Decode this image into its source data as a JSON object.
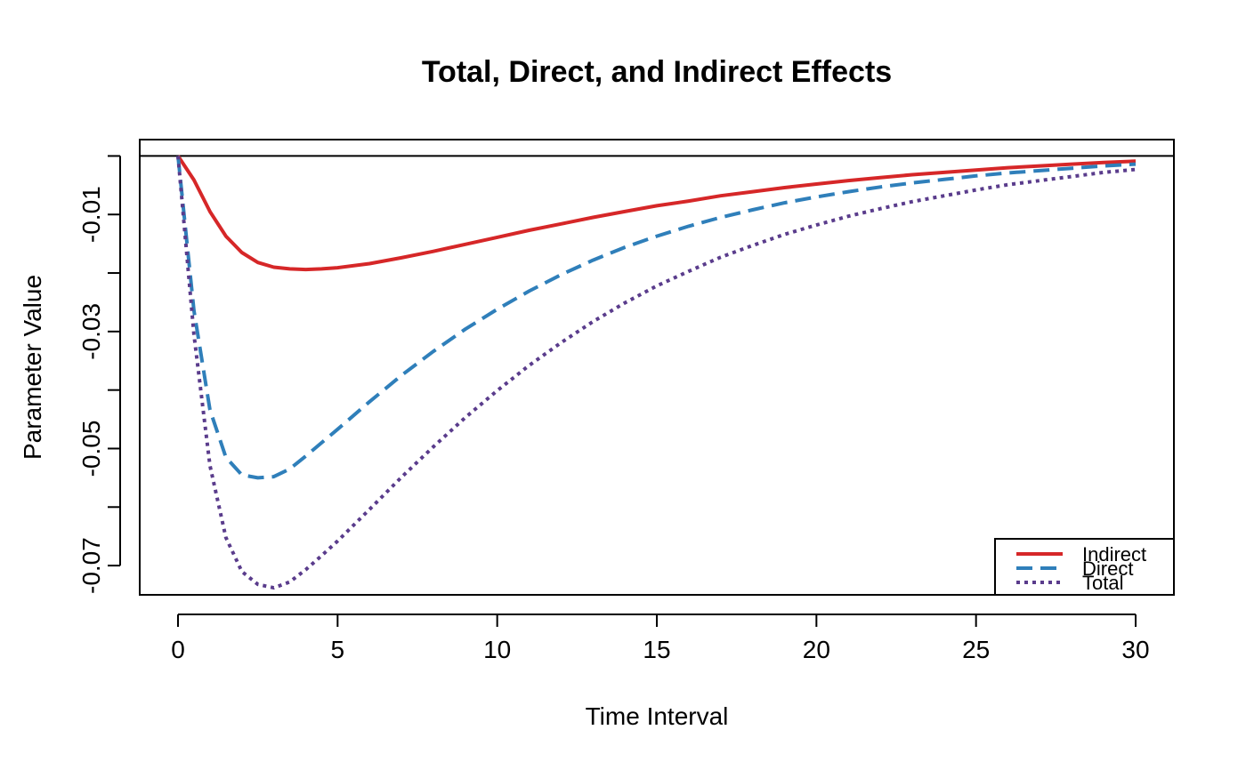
{
  "chart_data": {
    "type": "line",
    "title": "Total, Direct, and Indirect Effects",
    "xlabel": "Time Interval",
    "ylabel": "Parameter Value",
    "xlim": [
      0,
      30
    ],
    "ylim": [
      -0.075,
      0.0028
    ],
    "x_ticks": [
      0,
      5,
      10,
      15,
      20,
      25,
      30
    ],
    "x_tick_labels": [
      "0",
      "5",
      "10",
      "15",
      "20",
      "25",
      "30"
    ],
    "y_ticks": [
      -0.07,
      -0.06,
      -0.05,
      -0.04,
      -0.03,
      -0.02,
      -0.01,
      0
    ],
    "y_tick_labels": [
      {
        "value": -0.07,
        "label": "-0.07"
      },
      {
        "value": -0.05,
        "label": "-0.05"
      },
      {
        "value": -0.03,
        "label": "-0.03"
      },
      {
        "value": -0.01,
        "label": "-0.01"
      }
    ],
    "reference_line": 0,
    "grid": false,
    "legend_position": "bottom-right",
    "x": [
      0,
      0.5,
      1,
      1.5,
      2,
      2.5,
      3,
      3.5,
      4,
      4.5,
      5,
      6,
      7,
      8,
      9,
      10,
      11,
      12,
      13,
      14,
      15,
      16,
      17,
      18,
      19,
      20,
      21,
      22,
      23,
      24,
      25,
      26,
      27,
      28,
      29,
      30
    ],
    "series": [
      {
        "name": "Indirect",
        "color": "#d62728",
        "dash": "solid",
        "values": [
          0,
          -0.0041,
          -0.0095,
          -0.0137,
          -0.0165,
          -0.0182,
          -0.019,
          -0.0193,
          -0.0194,
          -0.0193,
          -0.0191,
          -0.0184,
          -0.0174,
          -0.0163,
          -0.0151,
          -0.0139,
          -0.0127,
          -0.0116,
          -0.0105,
          -0.0095,
          -0.0085,
          -0.0077,
          -0.0068,
          -0.0061,
          -0.0054,
          -0.0048,
          -0.0042,
          -0.0037,
          -0.0032,
          -0.0028,
          -0.0024,
          -0.002,
          -0.0017,
          -0.0014,
          -0.0011,
          -0.0009
        ]
      },
      {
        "name": "Direct",
        "color": "#2f7fba",
        "dash": "dashed",
        "values": [
          0,
          -0.0264,
          -0.0434,
          -0.0515,
          -0.0545,
          -0.055,
          -0.0548,
          -0.0535,
          -0.0513,
          -0.049,
          -0.0467,
          -0.042,
          -0.0375,
          -0.0334,
          -0.0296,
          -0.0262,
          -0.0231,
          -0.0203,
          -0.0178,
          -0.0156,
          -0.0137,
          -0.012,
          -0.0105,
          -0.0092,
          -0.008,
          -0.007,
          -0.0061,
          -0.0053,
          -0.0046,
          -0.004,
          -0.0034,
          -0.0029,
          -0.0025,
          -0.0021,
          -0.0017,
          -0.0014
        ]
      },
      {
        "name": "Total",
        "color": "#5a3c8c",
        "dash": "dotted",
        "values": [
          0,
          -0.0305,
          -0.0529,
          -0.0652,
          -0.071,
          -0.0732,
          -0.0738,
          -0.0728,
          -0.0707,
          -0.0683,
          -0.0658,
          -0.0604,
          -0.0549,
          -0.0497,
          -0.0447,
          -0.0401,
          -0.0358,
          -0.0319,
          -0.0283,
          -0.0251,
          -0.0222,
          -0.0197,
          -0.0173,
          -0.0153,
          -0.0134,
          -0.0118,
          -0.0103,
          -0.009,
          -0.0078,
          -0.0068,
          -0.0058,
          -0.0049,
          -0.0042,
          -0.0035,
          -0.0028,
          -0.0023
        ]
      }
    ]
  }
}
